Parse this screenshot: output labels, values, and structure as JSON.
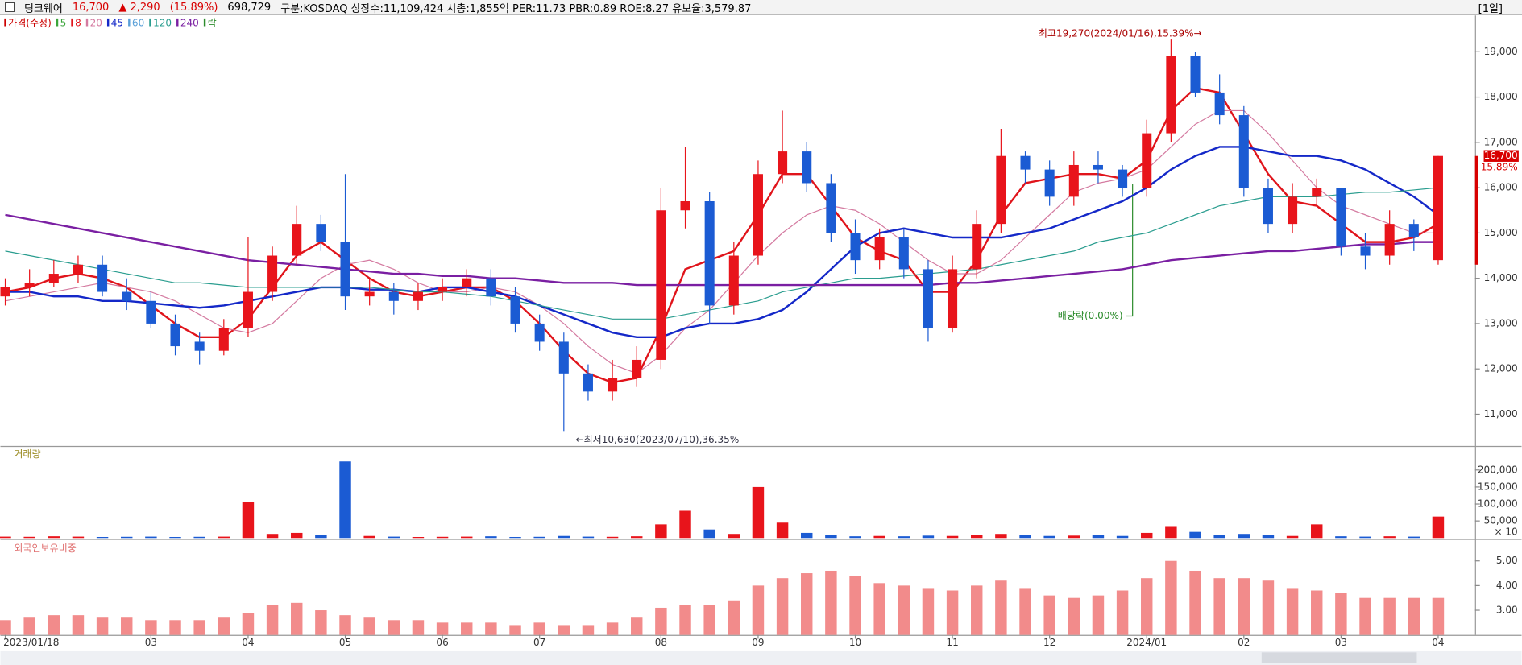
{
  "header": {
    "name": "팅크웨어",
    "price": "16,700",
    "change": "▲ 2,290",
    "change_pct": "(15.89%)",
    "volume": "698,729",
    "info": "구분:KOSDAQ 상장수:11,109,424 시총:1,855억 PER:11.73 PBR:0.89 ROE:8.27 유보율:3,579.87",
    "period": "[1일]"
  },
  "chart_data": [
    {
      "type": "candlestick",
      "title": "가격(수정)",
      "up_color": "#e8141b",
      "down_color": "#1b5bd3",
      "open": [
        13600,
        13800,
        13900,
        14100,
        14300,
        13700,
        13500,
        13000,
        12600,
        12400,
        12900,
        13700,
        14500,
        15200,
        14800,
        13600,
        13700,
        13500,
        13700,
        13800,
        14000,
        13600,
        13000,
        12600,
        11900,
        11500,
        11800,
        12200,
        15500,
        15700,
        13400,
        14500,
        16300,
        16800,
        16100,
        15000,
        14400,
        14900,
        14200,
        12900,
        14200,
        15200,
        16700,
        16400,
        15800,
        16500,
        16400,
        16000,
        17200,
        18900,
        18100,
        17600,
        16000,
        15200,
        15800,
        16000,
        14700,
        14500,
        15200,
        14400
      ],
      "high": [
        14000,
        14200,
        14400,
        14500,
        14500,
        14000,
        13700,
        13200,
        12800,
        13100,
        14900,
        14700,
        15600,
        15400,
        16300,
        14000,
        13900,
        13900,
        14000,
        14200,
        14200,
        13800,
        13200,
        12800,
        12100,
        12200,
        12500,
        16000,
        16900,
        15900,
        14800,
        16600,
        17700,
        17000,
        16300,
        15300,
        15100,
        15100,
        14400,
        14500,
        15500,
        17300,
        16800,
        16600,
        16800,
        16800,
        16500,
        17500,
        19270,
        19000,
        18500,
        17800,
        16200,
        16100,
        16200,
        16000,
        15000,
        15500,
        15300,
        16700
      ],
      "low": [
        13400,
        13600,
        13800,
        13900,
        13600,
        13300,
        12900,
        12300,
        12100,
        12300,
        12700,
        13500,
        14300,
        14600,
        13300,
        13400,
        13200,
        13300,
        13500,
        13600,
        13400,
        12800,
        12400,
        10630,
        11300,
        11300,
        11600,
        12000,
        15100,
        13000,
        13200,
        14300,
        16100,
        15900,
        14800,
        14100,
        14200,
        14000,
        12600,
        12800,
        14000,
        15000,
        16100,
        15600,
        15600,
        16100,
        15800,
        15800,
        17000,
        18000,
        17400,
        15800,
        15000,
        15000,
        15600,
        14500,
        14200,
        14300,
        14600,
        14300
      ],
      "close": [
        13800,
        13900,
        14100,
        14300,
        13700,
        13500,
        13000,
        12500,
        12400,
        12900,
        13700,
        14500,
        15200,
        14800,
        13600,
        13700,
        13500,
        13700,
        13800,
        14000,
        13600,
        13000,
        12600,
        11900,
        11500,
        11800,
        12200,
        15500,
        15700,
        13400,
        14500,
        16300,
        16800,
        16100,
        15000,
        14400,
        14900,
        14200,
        12900,
        14200,
        15200,
        16700,
        16400,
        15800,
        16500,
        16400,
        16000,
        17200,
        18900,
        18100,
        17600,
        16000,
        15200,
        15800,
        16000,
        14700,
        14500,
        15200,
        14900,
        16700
      ],
      "moving_averages": [
        {
          "name": "5",
          "color": "#3aa53a"
        },
        {
          "name": "8",
          "color": "#e0141b",
          "width": 2,
          "values": [
            13700,
            13800,
            14000,
            14100,
            14000,
            13800,
            13400,
            13000,
            12700,
            12700,
            13100,
            13800,
            14500,
            14800,
            14400,
            14000,
            13700,
            13600,
            13700,
            13800,
            13800,
            13500,
            13000,
            12400,
            11900,
            11700,
            11800,
            12900,
            14200,
            14400,
            14600,
            15400,
            16300,
            16300,
            15600,
            14900,
            14600,
            14400,
            13700,
            13700,
            14400,
            15400,
            16100,
            16200,
            16300,
            16300,
            16200,
            16600,
            17700,
            18200,
            18100,
            17200,
            16300,
            15700,
            15600,
            15200,
            14800,
            14800,
            14900,
            15200
          ]
        },
        {
          "name": "20",
          "color": "#d47aa0",
          "width": 1,
          "values": [
            13500,
            13600,
            13700,
            13800,
            13900,
            13800,
            13700,
            13500,
            13200,
            12900,
            12800,
            13000,
            13500,
            14000,
            14300,
            14400,
            14200,
            13900,
            13700,
            13700,
            13800,
            13700,
            13400,
            13000,
            12500,
            12100,
            11900,
            12300,
            12900,
            13300,
            13900,
            14500,
            15000,
            15400,
            15600,
            15500,
            15200,
            14800,
            14400,
            14100,
            14100,
            14400,
            14900,
            15400,
            15900,
            16100,
            16200,
            16400,
            16900,
            17400,
            17700,
            17700,
            17200,
            16600,
            16000,
            15600,
            15400,
            15200,
            15000,
            15000
          ]
        },
        {
          "name": "45",
          "color": "#1428c8",
          "width": 2,
          "values": [
            13700,
            13700,
            13600,
            13600,
            13500,
            13500,
            13450,
            13400,
            13350,
            13400,
            13500,
            13600,
            13700,
            13800,
            13800,
            13750,
            13750,
            13700,
            13800,
            13800,
            13700,
            13600,
            13400,
            13200,
            13000,
            12800,
            12700,
            12700,
            12900,
            13000,
            13000,
            13100,
            13300,
            13700,
            14200,
            14700,
            15000,
            15100,
            15000,
            14900,
            14900,
            14900,
            15000,
            15100,
            15300,
            15500,
            15700,
            16000,
            16400,
            16700,
            16900,
            16900,
            16800,
            16700,
            16700,
            16600,
            16400,
            16100,
            15800,
            15400
          ]
        },
        {
          "name": "60",
          "color": "#5aa0d8"
        },
        {
          "name": "120",
          "color": "#2a9d8f",
          "width": 1,
          "values": [
            14600,
            14500,
            14400,
            14300,
            14200,
            14100,
            14000,
            13900,
            13900,
            13850,
            13800,
            13800,
            13800,
            13800,
            13800,
            13800,
            13750,
            13700,
            13700,
            13650,
            13600,
            13500,
            13400,
            13300,
            13200,
            13100,
            13100,
            13100,
            13200,
            13300,
            13400,
            13500,
            13700,
            13800,
            13900,
            14000,
            14000,
            14050,
            14100,
            14150,
            14200,
            14300,
            14400,
            14500,
            14600,
            14800,
            14900,
            15000,
            15200,
            15400,
            15600,
            15700,
            15800,
            15800,
            15800,
            15850,
            15900,
            15900,
            15950,
            16000
          ]
        },
        {
          "name": "240",
          "color": "#7a1fa2",
          "width": 2,
          "values": [
            15400,
            15300,
            15200,
            15100,
            15000,
            14900,
            14800,
            14700,
            14600,
            14500,
            14400,
            14350,
            14300,
            14250,
            14200,
            14150,
            14100,
            14100,
            14050,
            14050,
            14000,
            14000,
            13950,
            13900,
            13900,
            13900,
            13850,
            13850,
            13850,
            13850,
            13850,
            13850,
            13850,
            13850,
            13850,
            13850,
            13850,
            13850,
            13850,
            13900,
            13900,
            13950,
            14000,
            14050,
            14100,
            14150,
            14200,
            14300,
            14400,
            14450,
            14500,
            14550,
            14600,
            14600,
            14650,
            14700,
            14750,
            14750,
            14800,
            14800
          ]
        }
      ],
      "ex_dividend": {
        "name": "락",
        "color": "#2c8c2c",
        "label": "배당락(0.00%)"
      },
      "annotations": {
        "high": "최고19,270(2024/01/16),15.39%→",
        "low": "←최저10,630(2023/07/10),36.35%"
      },
      "last_price_label": "16,700",
      "last_change_label": "15.89%",
      "ylim": [
        10300,
        19800
      ],
      "yticks": [
        {
          "value": 11000,
          "label": "11,000"
        },
        {
          "value": 12000,
          "label": "12,000"
        },
        {
          "value": 13000,
          "label": "13,000"
        },
        {
          "value": 14000,
          "label": "14,000"
        },
        {
          "value": 15000,
          "label": "15,000"
        },
        {
          "value": 16000,
          "label": "16,000"
        },
        {
          "value": 17000,
          "label": "17,000"
        },
        {
          "value": 18000,
          "label": "18,000"
        },
        {
          "value": 19000,
          "label": "19,000"
        }
      ]
    },
    {
      "type": "bar",
      "title": "거래량",
      "multiplier_label": "× 10",
      "values": [
        4000,
        3500,
        5000,
        4000,
        3000,
        3500,
        4000,
        3000,
        3500,
        4000,
        105000,
        12000,
        15000,
        8000,
        225000,
        6000,
        4000,
        3000,
        3500,
        4000,
        5000,
        3000,
        3500,
        6000,
        4000,
        3500,
        5000,
        40000,
        80000,
        25000,
        12000,
        150000,
        45000,
        15000,
        8000,
        5000,
        6000,
        5000,
        7000,
        6000,
        8000,
        12000,
        9000,
        6000,
        7000,
        8000,
        6000,
        15000,
        35000,
        18000,
        10000,
        12000,
        8000,
        6000,
        40000,
        5000,
        4000,
        5000,
        4000,
        63000
      ],
      "ylim": [
        0,
        268000
      ],
      "yticks": [
        {
          "value": 50000,
          "label": "50,000"
        },
        {
          "value": 100000,
          "label": "100,000"
        },
        {
          "value": 150000,
          "label": "150,000"
        },
        {
          "value": 200000,
          "label": "200,000"
        }
      ]
    },
    {
      "type": "bar",
      "title": "외국인보유비중",
      "color": "#f28b8b",
      "values": [
        2.6,
        2.7,
        2.8,
        2.8,
        2.7,
        2.7,
        2.6,
        2.6,
        2.6,
        2.7,
        2.9,
        3.2,
        3.3,
        3.0,
        2.8,
        2.7,
        2.6,
        2.6,
        2.5,
        2.5,
        2.5,
        2.4,
        2.5,
        2.4,
        2.4,
        2.5,
        2.7,
        3.1,
        3.2,
        3.2,
        3.4,
        4.0,
        4.3,
        4.5,
        4.6,
        4.4,
        4.1,
        4.0,
        3.9,
        3.8,
        4.0,
        4.2,
        3.9,
        3.6,
        3.5,
        3.6,
        3.8,
        4.3,
        5.0,
        4.6,
        4.3,
        4.3,
        4.2,
        3.9,
        3.8,
        3.7,
        3.5,
        3.5,
        3.5,
        3.5
      ],
      "categories": [
        "2023/01/18",
        null,
        null,
        null,
        null,
        null,
        "03",
        null,
        null,
        null,
        "04",
        null,
        null,
        null,
        "05",
        null,
        null,
        null,
        "06",
        null,
        null,
        null,
        "07",
        null,
        null,
        null,
        null,
        "08",
        null,
        null,
        null,
        "09",
        null,
        null,
        null,
        "10",
        null,
        null,
        null,
        "11",
        null,
        null,
        null,
        "12",
        null,
        null,
        null,
        "2024/01",
        null,
        null,
        null,
        "02",
        null,
        null,
        null,
        "03",
        null,
        null,
        null,
        "04"
      ],
      "ylim": [
        2.0,
        5.85
      ],
      "yticks": [
        {
          "value": 3,
          "label": "3.00"
        },
        {
          "value": 4,
          "label": "4.00"
        },
        {
          "value": 5,
          "label": "5.00"
        }
      ]
    }
  ]
}
